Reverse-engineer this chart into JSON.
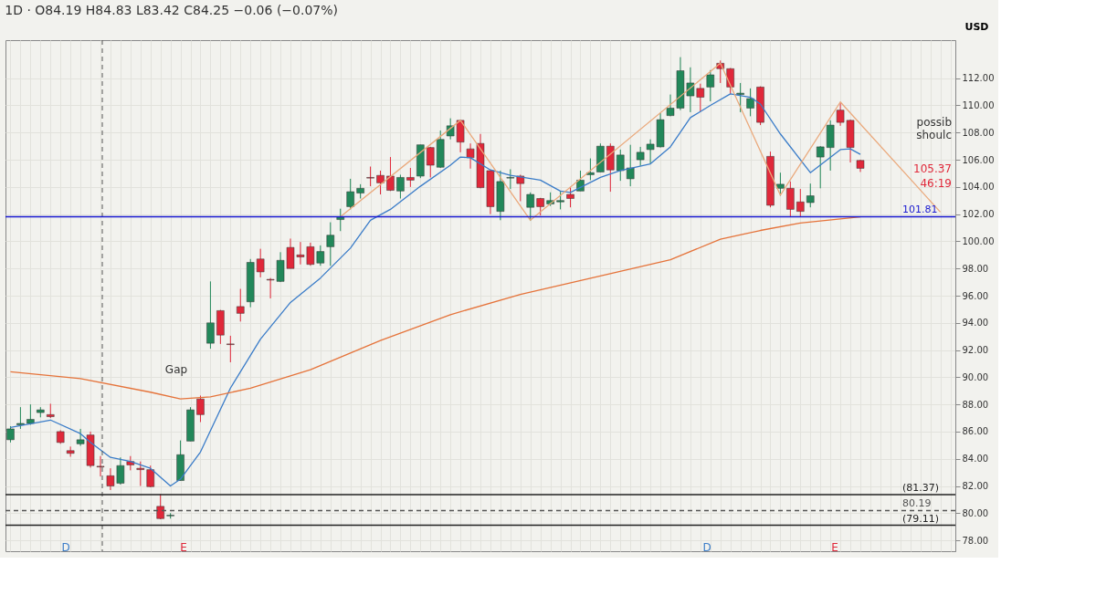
{
  "chart_data": {
    "type": "candlestick",
    "title": "1D · O84.19 H84.83 L83.42 C84.25 −0.06 (−0.07%)",
    "ylabel": "USD",
    "categories": [
      null,
      null,
      null,
      null,
      null,
      null,
      null,
      null,
      null,
      null,
      null,
      null,
      null,
      null,
      null,
      null,
      null,
      null,
      null,
      null,
      null,
      null,
      null,
      null,
      null,
      null,
      null,
      null,
      null,
      null,
      null,
      null,
      null,
      null,
      null,
      null,
      null,
      null,
      null,
      null,
      null,
      null,
      null,
      null,
      null,
      null,
      null,
      null,
      null,
      null,
      null,
      null,
      null,
      null,
      null,
      null,
      null,
      null,
      null,
      null,
      null,
      null,
      null,
      null,
      null,
      null,
      null,
      null,
      null,
      null,
      null,
      null,
      null,
      null,
      null,
      null,
      null,
      null,
      null,
      null,
      null,
      null,
      null,
      null,
      null,
      null,
      null,
      null,
      null,
      null,
      null,
      null,
      null,
      null,
      null
    ],
    "ohlc": [
      [
        85.4,
        86.4,
        85.2,
        86.2
      ],
      [
        86.5,
        87.8,
        86.2,
        86.6
      ],
      [
        86.6,
        88.0,
        86.5,
        86.9
      ],
      [
        87.4,
        87.8,
        87.05,
        87.6
      ],
      [
        87.25,
        88.05,
        87.0,
        87.1
      ],
      [
        86.0,
        86.1,
        85.1,
        85.2
      ],
      [
        84.6,
        84.9,
        84.15,
        84.4
      ],
      [
        85.1,
        86.2,
        84.95,
        85.4
      ],
      [
        85.75,
        86.0,
        83.35,
        83.5
      ],
      [
        83.45,
        84.2,
        82.7,
        83.4
      ],
      [
        82.75,
        83.3,
        81.7,
        82.0
      ],
      [
        82.2,
        84.1,
        82.1,
        83.5
      ],
      [
        83.8,
        84.2,
        83.15,
        83.55
      ],
      [
        83.3,
        83.8,
        82.0,
        83.2
      ],
      [
        83.2,
        83.5,
        81.9,
        81.95
      ],
      [
        80.5,
        81.4,
        79.55,
        79.6
      ],
      [
        79.8,
        80.0,
        79.6,
        79.85
      ],
      [
        82.4,
        85.35,
        82.4,
        84.3
      ],
      [
        85.3,
        87.8,
        85.3,
        87.6
      ],
      [
        88.4,
        88.65,
        86.7,
        87.25
      ],
      [
        92.5,
        97.05,
        92.1,
        94.0
      ],
      [
        94.9,
        94.95,
        92.45,
        93.1
      ],
      [
        92.45,
        93.05,
        91.1,
        92.4
      ],
      [
        95.2,
        96.5,
        94.1,
        94.7
      ],
      [
        95.55,
        98.7,
        95.15,
        98.45
      ],
      [
        98.7,
        99.45,
        97.35,
        97.75
      ],
      [
        97.2,
        97.3,
        95.8,
        97.15
      ],
      [
        97.05,
        99.2,
        97.0,
        98.6
      ],
      [
        99.55,
        100.2,
        98.0,
        98.0
      ],
      [
        99.0,
        99.95,
        98.3,
        98.85
      ],
      [
        99.6,
        99.9,
        98.2,
        98.3
      ],
      [
        98.4,
        99.7,
        98.2,
        99.25
      ],
      [
        99.6,
        101.4,
        98.2,
        100.45
      ],
      [
        101.6,
        102.4,
        100.75,
        101.8
      ],
      [
        102.55,
        104.6,
        102.35,
        103.65
      ],
      [
        103.55,
        104.2,
        103.15,
        103.9
      ],
      [
        104.7,
        105.5,
        104.05,
        104.65
      ],
      [
        104.85,
        105.2,
        103.45,
        104.3
      ],
      [
        104.8,
        106.2,
        103.7,
        103.75
      ],
      [
        103.7,
        104.9,
        103.15,
        104.7
      ],
      [
        104.7,
        105.4,
        104.0,
        104.5
      ],
      [
        104.8,
        107.1,
        104.65,
        107.1
      ],
      [
        106.9,
        106.95,
        104.7,
        105.6
      ],
      [
        105.45,
        108.15,
        105.4,
        107.5
      ],
      [
        107.75,
        109.05,
        107.5,
        108.5
      ],
      [
        108.9,
        108.95,
        106.55,
        107.3
      ],
      [
        106.8,
        107.2,
        105.35,
        106.15
      ],
      [
        107.2,
        107.9,
        103.9,
        103.95
      ],
      [
        105.2,
        105.25,
        102.0,
        102.55
      ],
      [
        102.2,
        105.2,
        101.55,
        104.4
      ],
      [
        104.65,
        105.3,
        103.85,
        104.7
      ],
      [
        104.8,
        104.9,
        102.95,
        104.25
      ],
      [
        102.5,
        103.6,
        101.5,
        103.45
      ],
      [
        103.15,
        103.2,
        101.9,
        102.55
      ],
      [
        102.75,
        103.6,
        102.6,
        103.0
      ],
      [
        102.9,
        103.65,
        102.35,
        103.0
      ],
      [
        103.45,
        104.0,
        102.5,
        103.15
      ],
      [
        103.7,
        105.2,
        103.7,
        104.5
      ],
      [
        104.9,
        106.1,
        104.5,
        105.05
      ],
      [
        105.1,
        107.2,
        105.1,
        107.0
      ],
      [
        107.0,
        107.2,
        103.65,
        105.25
      ],
      [
        105.2,
        106.75,
        104.45,
        106.35
      ],
      [
        104.6,
        107.1,
        104.05,
        105.4
      ],
      [
        106.0,
        106.95,
        105.55,
        106.55
      ],
      [
        106.75,
        107.5,
        105.7,
        107.15
      ],
      [
        106.95,
        109.45,
        106.9,
        108.95
      ],
      [
        109.25,
        110.8,
        109.2,
        109.8
      ],
      [
        109.8,
        113.55,
        109.65,
        112.55
      ],
      [
        110.7,
        112.8,
        109.5,
        111.65
      ],
      [
        111.25,
        111.6,
        109.55,
        110.6
      ],
      [
        111.35,
        112.6,
        110.3,
        112.25
      ],
      [
        113.1,
        113.3,
        111.65,
        112.7
      ],
      [
        112.7,
        112.75,
        110.85,
        111.35
      ],
      [
        110.8,
        111.65,
        109.5,
        110.9
      ],
      [
        109.8,
        111.25,
        109.2,
        110.5
      ],
      [
        111.35,
        111.4,
        108.55,
        108.75
      ],
      [
        106.25,
        106.6,
        102.5,
        102.65
      ],
      [
        103.9,
        105.05,
        103.35,
        104.2
      ],
      [
        103.9,
        104.4,
        101.8,
        102.35
      ],
      [
        102.9,
        103.85,
        101.8,
        102.2
      ],
      [
        102.85,
        104.25,
        102.5,
        103.35
      ],
      [
        106.2,
        107.0,
        103.9,
        106.95
      ],
      [
        106.9,
        108.9,
        105.2,
        108.55
      ],
      [
        109.65,
        110.25,
        108.5,
        108.75
      ],
      [
        108.9,
        108.95,
        105.8,
        106.9
      ],
      [
        105.95,
        106.0,
        105.1,
        105.37
      ],
      null,
      null,
      null,
      null,
      null,
      null,
      null,
      null,
      null
    ],
    "colors": [
      "#22885a",
      "#22885a",
      "#22885a",
      "#22885a",
      "#e0283a",
      "#e0283a",
      "#e0283a",
      "#22885a",
      "#e0283a",
      "#e0283a",
      "#e0283a",
      "#22885a",
      "#e0283a",
      "#e0283a",
      "#e0283a",
      "#e0283a",
      "#22885a",
      "#22885a",
      "#22885a",
      "#e0283a",
      "#22885a",
      "#e0283a",
      "#e0283a",
      "#e0283a",
      "#22885a",
      "#e0283a",
      "#e0283a",
      "#22885a",
      "#e0283a",
      "#e0283a",
      "#e0283a",
      "#22885a",
      "#22885a",
      "#22885a",
      "#22885a",
      "#22885a",
      "#e0283a",
      "#e0283a",
      "#e0283a",
      "#22885a",
      "#e0283a",
      "#22885a",
      "#e0283a",
      "#22885a",
      "#22885a",
      "#e0283a",
      "#e0283a",
      "#e0283a",
      "#e0283a",
      "#22885a",
      "#22885a",
      "#e0283a",
      "#22885a",
      "#e0283a",
      "#22885a",
      "#22885a",
      "#e0283a",
      "#22885a",
      "#22885a",
      "#22885a",
      "#e0283a",
      "#22885a",
      "#22885a",
      "#22885a",
      "#22885a",
      "#22885a",
      "#22885a",
      "#22885a",
      "#22885a",
      "#e0283a",
      "#22885a",
      "#e0283a",
      "#e0283a",
      "#22885a",
      "#22885a",
      "#e0283a",
      "#e0283a",
      "#22885a",
      "#e0283a",
      "#e0283a",
      "#22885a",
      "#22885a",
      "#22885a",
      "#e0283a",
      "#e0283a",
      "#e0283a",
      null,
      null,
      null,
      null,
      null,
      null,
      null,
      null,
      null
    ],
    "series": [
      {
        "type": "line",
        "color": "#3a7cc8",
        "values": [
          86.3,
          null,
          null,
          null,
          86.85,
          null,
          null,
          85.85,
          85.2,
          null,
          84.1,
          null,
          83.8,
          null,
          83.3,
          null,
          82.0,
          82.5,
          null,
          84.5,
          null,
          null,
          89.2,
          null,
          null,
          92.8,
          null,
          null,
          95.5,
          null,
          null,
          97.3,
          null,
          null,
          99.5,
          null,
          101.55,
          null,
          102.35,
          null,
          null,
          104.05,
          null,
          null,
          105.6,
          106.2,
          106.15,
          null,
          105.25,
          null,
          104.85,
          null,
          null,
          104.5,
          null,
          103.7,
          103.6,
          null,
          null,
          104.7,
          null,
          105.2,
          null,
          null,
          105.7,
          null,
          106.95,
          null,
          109.1,
          null,
          110.0,
          null,
          110.85,
          null,
          110.6,
          110.1,
          null,
          107.9,
          null,
          null,
          105.05,
          null,
          null,
          106.75,
          106.8,
          106.4,
          null,
          null,
          null,
          null,
          null,
          null,
          null,
          null,
          null
        ]
      },
      {
        "type": "line",
        "color": "#e5733a",
        "values": [
          90.4,
          null,
          null,
          null,
          null,
          null,
          null,
          89.9,
          null,
          null,
          null,
          null,
          null,
          null,
          88.9,
          null,
          null,
          88.4,
          null,
          null,
          88.55,
          null,
          null,
          null,
          89.2,
          null,
          null,
          null,
          null,
          null,
          90.55,
          null,
          null,
          null,
          null,
          null,
          null,
          92.7,
          null,
          null,
          null,
          null,
          null,
          null,
          94.6,
          null,
          null,
          null,
          null,
          null,
          null,
          96.1,
          null,
          null,
          null,
          null,
          null,
          null,
          null,
          97.45,
          null,
          null,
          null,
          null,
          null,
          null,
          98.65,
          null,
          null,
          null,
          null,
          100.15,
          null,
          null,
          null,
          100.8,
          null,
          null,
          null,
          101.35,
          null,
          null,
          null,
          null,
          null,
          101.8,
          null,
          null,
          null,
          null,
          null,
          null,
          null,
          null,
          null
        ]
      },
      {
        "type": "line",
        "color": "#eaa97c",
        "values": [
          null,
          null,
          null,
          null,
          null,
          null,
          null,
          null,
          null,
          null,
          null,
          null,
          null,
          null,
          null,
          null,
          null,
          null,
          null,
          null,
          null,
          null,
          null,
          null,
          null,
          null,
          null,
          null,
          null,
          null,
          null,
          null,
          null,
          101.8,
          null,
          null,
          null,
          null,
          null,
          null,
          null,
          null,
          null,
          null,
          null,
          108.9,
          null,
          null,
          null,
          null,
          null,
          null,
          101.55,
          null,
          null,
          null,
          null,
          null,
          null,
          null,
          null,
          null,
          null,
          null,
          null,
          null,
          null,
          null,
          null,
          null,
          null,
          113.1,
          null,
          null,
          null,
          null,
          null,
          103.4,
          null,
          null,
          null,
          null,
          null,
          110.25,
          null,
          null,
          null,
          null,
          null,
          null,
          null,
          null,
          null,
          102.15,
          null
        ]
      }
    ],
    "ylim": [
      77.2,
      114.8
    ],
    "yticks": [
      {
        "value": 78,
        "label": "78.00"
      },
      {
        "value": 80,
        "label": "80.00"
      },
      {
        "value": 82,
        "label": "82.00"
      },
      {
        "value": 84,
        "label": "84.00"
      },
      {
        "value": 86,
        "label": "86.00"
      },
      {
        "value": 88,
        "label": "88.00"
      },
      {
        "value": 90,
        "label": "90.00"
      },
      {
        "value": 92,
        "label": "92.00"
      },
      {
        "value": 94,
        "label": "94.00"
      },
      {
        "value": 96,
        "label": "96.00"
      },
      {
        "value": 98,
        "label": "98.00"
      },
      {
        "value": 100,
        "label": "100.00"
      },
      {
        "value": 102,
        "label": "102.00"
      },
      {
        "value": 104,
        "label": "104.00"
      },
      {
        "value": 106,
        "label": "106.00"
      },
      {
        "value": 108,
        "label": "108.00"
      },
      {
        "value": 110,
        "label": "110.00"
      },
      {
        "value": 112,
        "label": "112.00"
      }
    ],
    "tick_labels": "y",
    "grid": true,
    "ref_lines": [
      {
        "axis": "y",
        "value": 101.81,
        "label": "101.81",
        "color": "#1a1ad0",
        "line_style": "solid"
      },
      {
        "axis": "y",
        "value": 81.37,
        "label": "(81.37)",
        "color": "#222222",
        "line_style": "solid"
      },
      {
        "axis": "y",
        "value": 79.11,
        "label": "(79.11)",
        "color": "#222222",
        "line_style": "solid"
      },
      {
        "axis": "y",
        "value": 80.19,
        "label": "80.19",
        "color": "#555555",
        "line_style": "dashed"
      }
    ],
    "annotations": [
      "Gap",
      "D",
      "E",
      "D",
      "E",
      "possib",
      "shoulc",
      "105.37",
      "46:19"
    ]
  }
}
